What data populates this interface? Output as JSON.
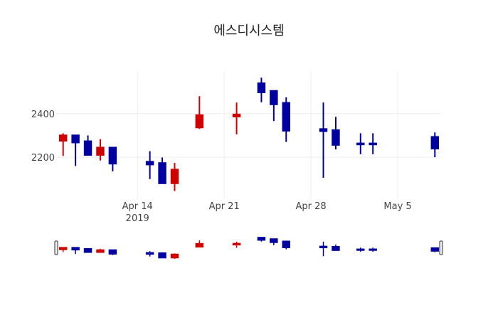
{
  "chart_data": {
    "type": "candlestick",
    "title": "에스디시스템",
    "xlabel": "",
    "ylabel": "",
    "xlim": [
      "2019-04-07T12:00",
      "2019-05-08T12:00"
    ],
    "ylim": [
      2008,
      2595
    ],
    "grid": true,
    "y_ticks": [
      2200,
      2400
    ],
    "x_ticks": [
      {
        "date": "2019-04-14",
        "label": "Apr 14",
        "sublabel": "2019"
      },
      {
        "date": "2019-04-21",
        "label": "Apr 21",
        "sublabel": ""
      },
      {
        "date": "2019-04-28",
        "label": "Apr 28",
        "sublabel": ""
      },
      {
        "date": "2019-05-05",
        "label": "May 5",
        "sublabel": ""
      }
    ],
    "increasing_color": "#d00000",
    "decreasing_color": "#0000a0",
    "rangeslider": true,
    "series": [
      {
        "date": "2019-04-08",
        "open": 2277,
        "high": 2310,
        "low": 2206,
        "close": 2299
      },
      {
        "date": "2019-04-09",
        "open": 2299,
        "high": 2299,
        "low": 2160,
        "close": 2269
      },
      {
        "date": "2019-04-10",
        "open": 2272,
        "high": 2300,
        "low": 2210,
        "close": 2212
      },
      {
        "date": "2019-04-11",
        "open": 2212,
        "high": 2283,
        "low": 2185,
        "close": 2243
      },
      {
        "date": "2019-04-12",
        "open": 2243,
        "high": 2243,
        "low": 2135,
        "close": 2172
      },
      {
        "date": "2019-04-15",
        "open": 2178,
        "high": 2228,
        "low": 2100,
        "close": 2168
      },
      {
        "date": "2019-04-16",
        "open": 2172,
        "high": 2199,
        "low": 2082,
        "close": 2082
      },
      {
        "date": "2019-04-17",
        "open": 2082,
        "high": 2174,
        "low": 2045,
        "close": 2142
      },
      {
        "date": "2019-04-19",
        "open": 2338,
        "high": 2480,
        "low": 2330,
        "close": 2392
      },
      {
        "date": "2019-04-22",
        "open": 2388,
        "high": 2451,
        "low": 2305,
        "close": 2395
      },
      {
        "date": "2019-04-24",
        "open": 2538,
        "high": 2565,
        "low": 2452,
        "close": 2499
      },
      {
        "date": "2019-04-25",
        "open": 2503,
        "high": 2503,
        "low": 2366,
        "close": 2444
      },
      {
        "date": "2019-04-26",
        "open": 2448,
        "high": 2475,
        "low": 2270,
        "close": 2323
      },
      {
        "date": "2019-04-29",
        "open": 2328,
        "high": 2451,
        "low": 2106,
        "close": 2321
      },
      {
        "date": "2019-04-30",
        "open": 2323,
        "high": 2385,
        "low": 2236,
        "close": 2258
      },
      {
        "date": "2019-05-02",
        "open": 2262,
        "high": 2310,
        "low": 2214,
        "close": 2260
      },
      {
        "date": "2019-05-03",
        "open": 2262,
        "high": 2310,
        "low": 2214,
        "close": 2260
      },
      {
        "date": "2019-05-08",
        "open": 2292,
        "high": 2314,
        "low": 2200,
        "close": 2241
      }
    ]
  }
}
